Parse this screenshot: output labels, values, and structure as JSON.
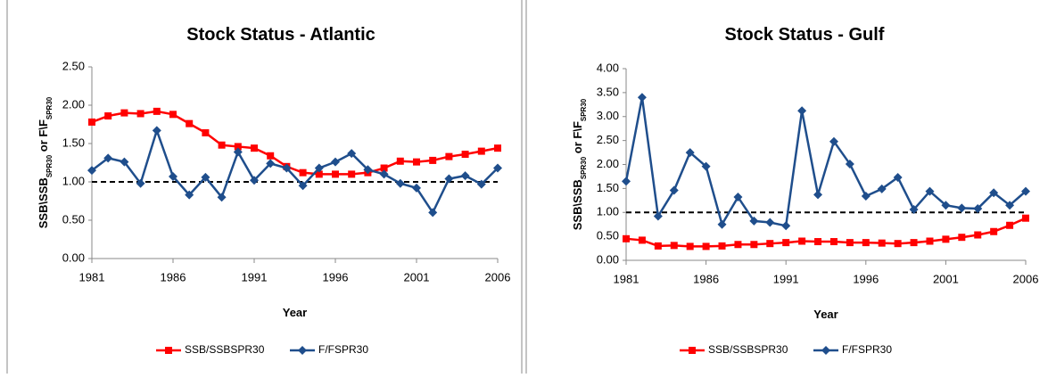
{
  "chart_data": [
    {
      "type": "line",
      "title": "Stock Status - Atlantic",
      "xlabel": "Year",
      "ylabel": [
        "SSB\\SSB",
        "SPR30",
        " or F\\F",
        "SPR30"
      ],
      "x": [
        1981,
        1982,
        1983,
        1984,
        1985,
        1986,
        1987,
        1988,
        1989,
        1990,
        1991,
        1992,
        1993,
        1994,
        1995,
        1996,
        1997,
        1998,
        1999,
        2000,
        2001,
        2002,
        2003,
        2004,
        2005,
        2006
      ],
      "series": [
        {
          "name": "SSB/SSBSPR30",
          "color": "#ff0000",
          "marker": "square",
          "values": [
            1.78,
            1.86,
            1.9,
            1.89,
            1.92,
            1.88,
            1.76,
            1.64,
            1.48,
            1.46,
            1.44,
            1.34,
            1.2,
            1.12,
            1.1,
            1.1,
            1.1,
            1.12,
            1.18,
            1.27,
            1.26,
            1.28,
            1.33,
            1.36,
            1.4,
            1.44
          ]
        },
        {
          "name": "F/FSPR30",
          "color": "#1f4e8c",
          "marker": "diamond",
          "values": [
            1.15,
            1.31,
            1.26,
            0.98,
            1.67,
            1.07,
            0.83,
            1.06,
            0.8,
            1.39,
            1.02,
            1.24,
            1.18,
            0.95,
            1.18,
            1.26,
            1.37,
            1.16,
            1.1,
            0.98,
            0.92,
            0.6,
            1.04,
            1.08,
            0.97,
            1.18
          ]
        }
      ],
      "reference_line": 1,
      "xlim": [
        1981,
        2006
      ],
      "xticks": [
        1981,
        1986,
        1991,
        1996,
        2001,
        2006
      ],
      "ylim": [
        0,
        2.5
      ],
      "yticks": [
        {
          "value": 0,
          "label": "0.00"
        },
        {
          "value": 0.5,
          "label": "0.50"
        },
        {
          "value": 1,
          "label": "1.00"
        },
        {
          "value": 1.5,
          "label": "1.50"
        },
        {
          "value": 2,
          "label": "2.00"
        },
        {
          "value": 2.5,
          "label": "2.50"
        }
      ],
      "legend": "bottom"
    },
    {
      "type": "line",
      "title": "Stock Status - Gulf",
      "xlabel": "Year",
      "ylabel": [
        "SSB\\SSB",
        "SPR30",
        " or F\\F",
        "SPR30"
      ],
      "x": [
        1981,
        1982,
        1983,
        1984,
        1985,
        1986,
        1987,
        1988,
        1989,
        1990,
        1991,
        1992,
        1993,
        1994,
        1995,
        1996,
        1997,
        1998,
        1999,
        2000,
        2001,
        2002,
        2003,
        2004,
        2005,
        2006
      ],
      "series": [
        {
          "name": "SSB/SSBSPR30",
          "color": "#ff0000",
          "marker": "square",
          "values": [
            0.45,
            0.42,
            0.3,
            0.31,
            0.29,
            0.29,
            0.3,
            0.33,
            0.33,
            0.35,
            0.37,
            0.4,
            0.39,
            0.39,
            0.37,
            0.37,
            0.36,
            0.35,
            0.37,
            0.4,
            0.44,
            0.48,
            0.53,
            0.6,
            0.73,
            0.88
          ]
        },
        {
          "name": "F/FSPR30",
          "color": "#1f4e8c",
          "marker": "diamond",
          "values": [
            1.65,
            3.4,
            0.92,
            1.46,
            2.25,
            1.96,
            0.75,
            1.32,
            0.82,
            0.79,
            0.72,
            3.12,
            1.37,
            2.48,
            2.01,
            1.34,
            1.49,
            1.73,
            1.06,
            1.44,
            1.15,
            1.09,
            1.08,
            1.41,
            1.15,
            1.44
          ]
        }
      ],
      "reference_line": 1,
      "xlim": [
        1981,
        2006
      ],
      "xticks": [
        1981,
        1986,
        1991,
        1996,
        2001,
        2006
      ],
      "ylim": [
        0,
        4
      ],
      "yticks": [
        {
          "value": 0,
          "label": "0.00"
        },
        {
          "value": 0.5,
          "label": "0.50"
        },
        {
          "value": 1,
          "label": "1.00"
        },
        {
          "value": 1.5,
          "label": "1.50"
        },
        {
          "value": 2,
          "label": "2.00"
        },
        {
          "value": 2.5,
          "label": "2.50"
        },
        {
          "value": 3,
          "label": "3.00"
        },
        {
          "value": 3.5,
          "label": "3.50"
        },
        {
          "value": 4,
          "label": "4.00"
        }
      ],
      "legend": "bottom"
    }
  ]
}
